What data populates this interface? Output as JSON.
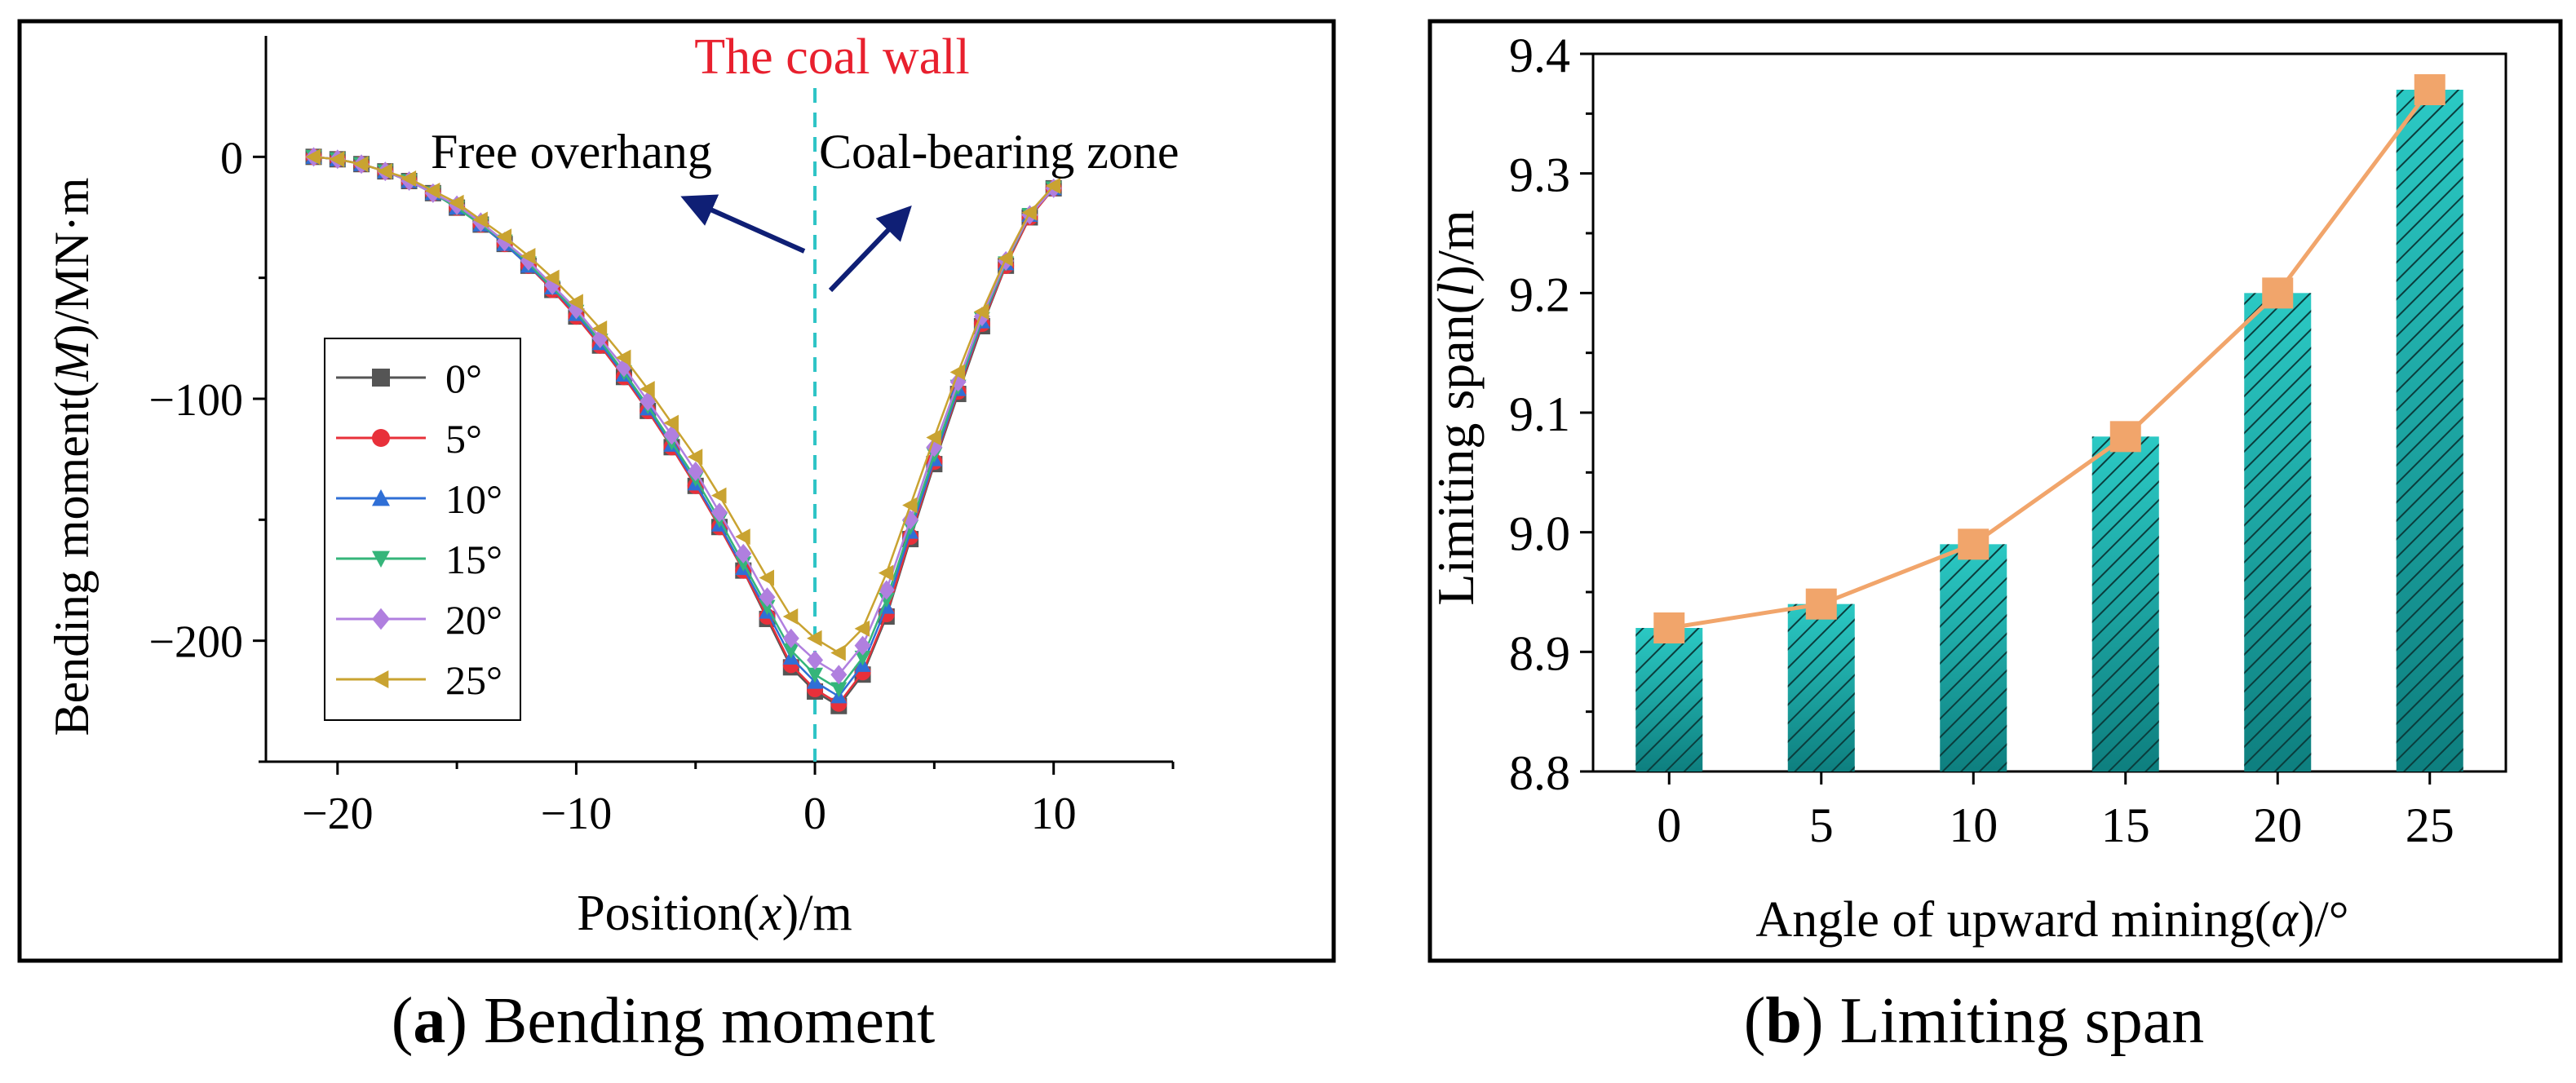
{
  "colors": {
    "frame": "#000000",
    "wall_line": "#2ec4c6",
    "wall_label": "#e8202e",
    "arrow": "#0f1f75",
    "bar_fill": "#2bc9c4",
    "bar_fill_dark": "#0e7f7f",
    "bar_hatch": "#0a3d3d",
    "line_b": "#f1a56b",
    "series": [
      "#555555",
      "#e8303a",
      "#2f6fd6",
      "#35b57a",
      "#b07fdf",
      "#c9a331"
    ]
  },
  "panel_a": {
    "caption_letter": "a",
    "caption_text": " Bending moment",
    "annotations": {
      "wall": "The coal wall",
      "left": "Free overhang",
      "right": "Coal-bearing zone"
    }
  },
  "panel_b": {
    "caption_letter": "b",
    "caption_text": " Limiting span"
  },
  "chart_data": [
    {
      "type": "line",
      "title": "",
      "xlabel_parts": [
        "Position(",
        "x",
        ")/m"
      ],
      "ylabel_parts": [
        "Bending moment(",
        "M",
        ")/MN·m"
      ],
      "xlim": [
        -23,
        15
      ],
      "ylim": [
        -250,
        50
      ],
      "xticks": [
        -20,
        -10,
        0,
        10
      ],
      "xtick_labels": [
        "−20",
        "−10",
        "0",
        "10"
      ],
      "yticks": [
        0,
        -100,
        -200
      ],
      "ytick_labels": [
        "0",
        "−100",
        "−200"
      ],
      "legend_position": "lower-left",
      "x": [
        -21,
        -20,
        -19,
        -18,
        -17,
        -16,
        -15,
        -14,
        -13,
        -12,
        -11,
        -10,
        -9,
        -8,
        -7,
        -6,
        -5,
        -4,
        -3,
        -2,
        -1,
        0,
        1,
        2,
        3,
        4,
        5,
        6,
        7,
        8,
        9,
        10
      ],
      "series": [
        {
          "name": "0°",
          "marker": "square",
          "values": [
            0,
            -1,
            -3,
            -6,
            -10,
            -15,
            -21,
            -28,
            -36,
            -45,
            -55,
            -66,
            -78,
            -91,
            -105,
            -120,
            -136,
            -153,
            -171,
            -191,
            -211,
            -221,
            -227,
            -214,
            -190,
            -158,
            -127,
            -98,
            -70,
            -45,
            -25,
            -13
          ]
        },
        {
          "name": "5°",
          "marker": "circle",
          "values": [
            0,
            -1,
            -3,
            -6,
            -10,
            -15,
            -21,
            -28,
            -36,
            -45,
            -55,
            -66,
            -78,
            -91,
            -105,
            -120,
            -136,
            -153,
            -171,
            -190,
            -210,
            -220,
            -226,
            -213,
            -189,
            -157,
            -126,
            -97,
            -69,
            -45,
            -25,
            -13
          ]
        },
        {
          "name": "10°",
          "marker": "triangle-up",
          "values": [
            0,
            -1,
            -3,
            -6,
            -10,
            -15,
            -21,
            -28,
            -36,
            -45,
            -54,
            -65,
            -77,
            -90,
            -104,
            -119,
            -135,
            -152,
            -170,
            -188,
            -207,
            -217,
            -223,
            -210,
            -186,
            -155,
            -125,
            -96,
            -68,
            -44,
            -24,
            -13
          ]
        },
        {
          "name": "15°",
          "marker": "triangle-down",
          "values": [
            0,
            -1,
            -3,
            -6,
            -10,
            -15,
            -21,
            -28,
            -35,
            -44,
            -54,
            -64,
            -76,
            -89,
            -103,
            -118,
            -133,
            -150,
            -168,
            -186,
            -204,
            -214,
            -220,
            -207,
            -183,
            -153,
            -123,
            -95,
            -67,
            -44,
            -24,
            -13
          ]
        },
        {
          "name": "20°",
          "marker": "diamond",
          "values": [
            0,
            -1,
            -3,
            -6,
            -10,
            -15,
            -20,
            -27,
            -35,
            -43,
            -53,
            -63,
            -75,
            -87,
            -101,
            -115,
            -130,
            -147,
            -164,
            -182,
            -199,
            -208,
            -214,
            -202,
            -179,
            -150,
            -120,
            -93,
            -66,
            -43,
            -24,
            -13
          ]
        },
        {
          "name": "25°",
          "marker": "triangle-left",
          "values": [
            0,
            -1,
            -3,
            -6,
            -9,
            -14,
            -19,
            -26,
            -33,
            -41,
            -50,
            -60,
            -71,
            -83,
            -96,
            -110,
            -124,
            -140,
            -157,
            -174,
            -190,
            -199,
            -205,
            -195,
            -172,
            -144,
            -116,
            -89,
            -64,
            -42,
            -23,
            -12
          ]
        }
      ]
    },
    {
      "type": "bar",
      "title": "",
      "xlabel_parts": [
        "Angle of upward mining(",
        "α",
        ")/°"
      ],
      "ylabel_parts": [
        "Limiting span(",
        "l",
        ")/m"
      ],
      "categories": [
        "0",
        "5",
        "10",
        "15",
        "20",
        "25"
      ],
      "values": [
        8.92,
        8.94,
        8.99,
        9.08,
        9.2,
        9.37
      ],
      "ylim": [
        8.8,
        9.4
      ],
      "yticks": [
        8.8,
        8.9,
        9.0,
        9.1,
        9.2,
        9.3,
        9.4
      ],
      "ytick_labels": [
        "8.8",
        "8.9",
        "9.0",
        "9.1",
        "9.2",
        "9.3",
        "9.4"
      ],
      "overlay_line": {
        "marker": "square",
        "values": [
          8.92,
          8.94,
          8.99,
          9.08,
          9.2,
          9.37
        ]
      }
    }
  ]
}
